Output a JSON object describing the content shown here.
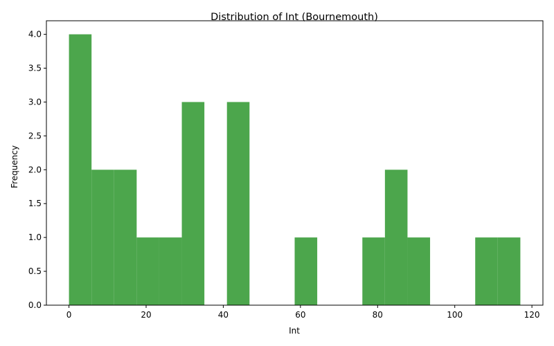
{
  "chart_data": {
    "type": "bar",
    "title": "Distribution of Int (Bournemouth)",
    "xlabel": "Int",
    "ylabel": "Frequency",
    "bins": {
      "start": 0,
      "width": 5.85,
      "counts": [
        4,
        2,
        2,
        1,
        1,
        3,
        0,
        3,
        0,
        0,
        1,
        0,
        0,
        1,
        2,
        1,
        0,
        0,
        1,
        1
      ]
    },
    "xlim": [
      -5.85,
      122.85
    ],
    "ylim": [
      0,
      4.2
    ],
    "xticks": [
      0,
      20,
      40,
      60,
      80,
      100,
      120
    ],
    "xtick_labels": [
      "0",
      "20",
      "40",
      "60",
      "80",
      "100",
      "120"
    ],
    "yticks": [
      0,
      0.5,
      1.0,
      1.5,
      2.0,
      2.5,
      3.0,
      3.5,
      4.0
    ],
    "ytick_labels": [
      "0.0",
      "0.5",
      "1.0",
      "1.5",
      "2.0",
      "2.5",
      "3.0",
      "3.5",
      "4.0"
    ],
    "bar_color": "#4ca64c",
    "grid": false
  }
}
